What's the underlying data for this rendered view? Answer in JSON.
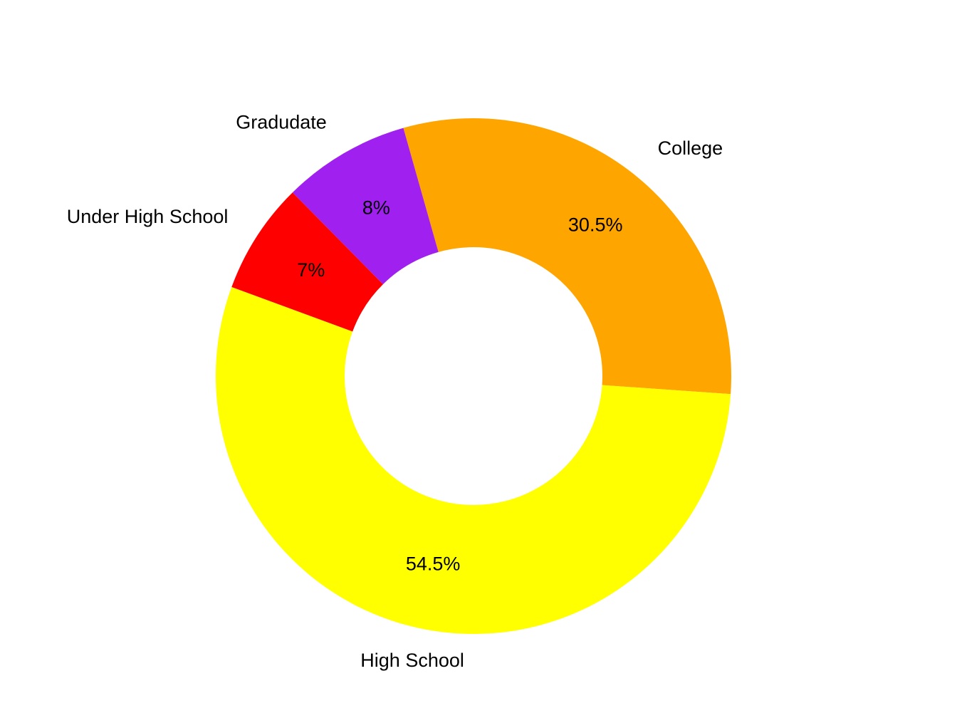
{
  "chart_data": {
    "type": "pie",
    "variant": "donut",
    "title": "",
    "slices": [
      {
        "name": "College",
        "value": 30.5,
        "pct_label": "30.5%",
        "color": "#FFA500"
      },
      {
        "name": "Gradudate",
        "value": 8,
        "pct_label": "8%",
        "color": "#A020F0"
      },
      {
        "name": "Under High School",
        "value": 7,
        "pct_label": "7%",
        "color": "#FF0000"
      },
      {
        "name": "High School",
        "value": 54.5,
        "pct_label": "54.5%",
        "color": "#FFFF00"
      }
    ],
    "legend": "none"
  }
}
